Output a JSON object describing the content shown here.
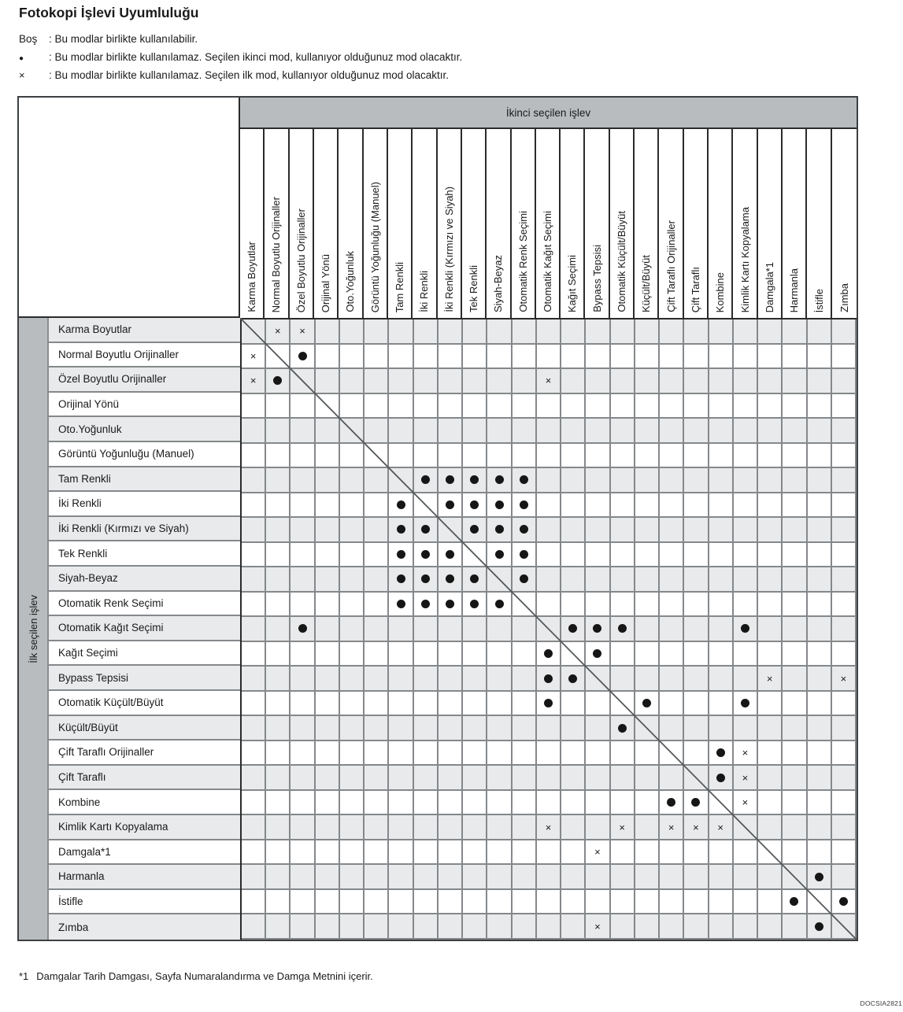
{
  "title": "Fotokopi İşlevi Uyumluluğu",
  "legend": [
    {
      "symbol": "Boş",
      "text": ": Bu modlar birlikte kullanılabilir."
    },
    {
      "symbol": "●",
      "text": ": Bu modlar birlikte kullanılamaz. Seçilen ikinci mod, kullanıyor olduğunuz mod olacaktır."
    },
    {
      "symbol": "×",
      "text": ": Bu modlar birlikte kullanılamaz. Seçilen ilk mod, kullanıyor olduğunuz mod olacaktır."
    }
  ],
  "table": {
    "col_group_header": "İkinci seçilen işlev",
    "row_group_header": "İlk seçilen işlev",
    "functions": [
      "Karma Boyutlar",
      "Normal Boyutlu Orijinaller",
      "Özel Boyutlu Orijinaller",
      "Orijinal Yönü",
      "Oto.Yoğunluk",
      "Görüntü Yoğunluğu (Manuel)",
      "Tam Renkli",
      "İki Renkli",
      "İki Renkli (Kırmızı ve Siyah)",
      "Tek Renkli",
      "Siyah-Beyaz",
      "Otomatik Renk Seçimi",
      "Otomatik Kağıt Seçimi",
      "Kağıt Seçimi",
      "Bypass Tepsisi",
      "Otomatik Küçült/Büyüt",
      "Küçült/Büyüt",
      "Çift Taraflı Orijinaller",
      "Çift Taraflı",
      "Kombine",
      "Kimlik Kartı Kopyalama",
      "Damgala*1",
      "Harmanla",
      "İstifle",
      "Zımba"
    ],
    "cell_key": {
      ".": "blank",
      "D": "●",
      "X": "×",
      "S": "diagonal-self"
    },
    "matrix": [
      "SXX......................",
      "XSD......................",
      "XDS.........X............",
      "...S.....................",
      "....S....................",
      ".....S...................",
      "......SDDDDD.............",
      "......DSDDDD.............",
      "......DDSDDD.............",
      "......DDDSDD.............",
      "......DDDDSD.............",
      "......DDDDDS.............",
      "..D.........SDDD....D....",
      "............DSD..........",
      "............DDS......X..X",
      "............D..SD...D....",
      "...............DS........",
      ".................S.DX....",
      "..................SDX....",
      ".................DDSX....",
      "............X..X.XXXS....",
      "..............X......S...",
      "......................SD.",
      "......................DSD",
      "..............X........DS"
    ]
  },
  "footnote": {
    "marker": "*1",
    "text": "Damgalar Tarih Damgası, Sayfa Numaralandırma ve Damga Metnini içerir."
  },
  "doc_code": "DOCSIA2821"
}
